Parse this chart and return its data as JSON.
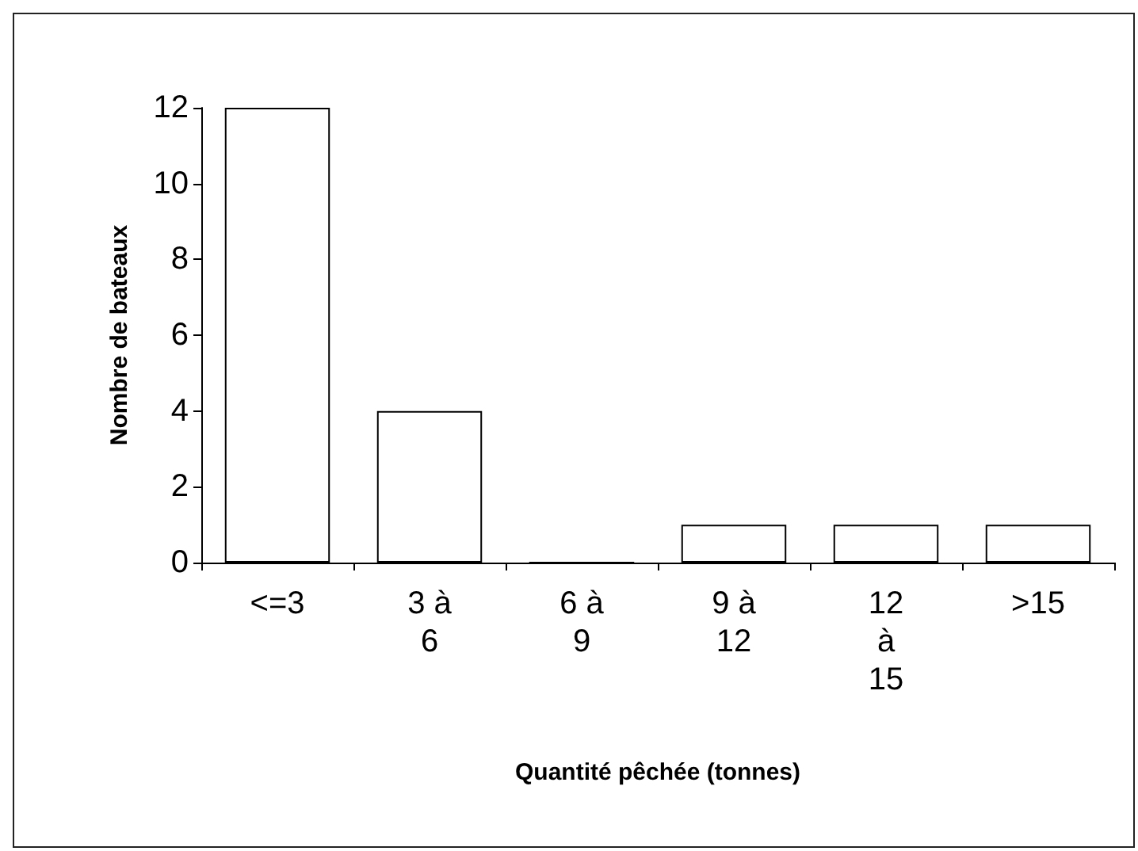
{
  "chart_data": {
    "type": "bar",
    "xlabel": "Quantité pêchée (tonnes)",
    "ylabel": "Nombre de bateaux",
    "categories": [
      "<=3",
      "3 à 6",
      "6 à 9",
      "9 à 12",
      "12 à 15",
      ">15"
    ],
    "values": [
      12,
      4,
      0,
      1,
      1,
      1
    ],
    "color": "#ffffff",
    "ylim": [
      0,
      12
    ],
    "yticks": [
      0,
      2,
      4,
      6,
      8,
      10,
      12
    ],
    "grid": false
  }
}
